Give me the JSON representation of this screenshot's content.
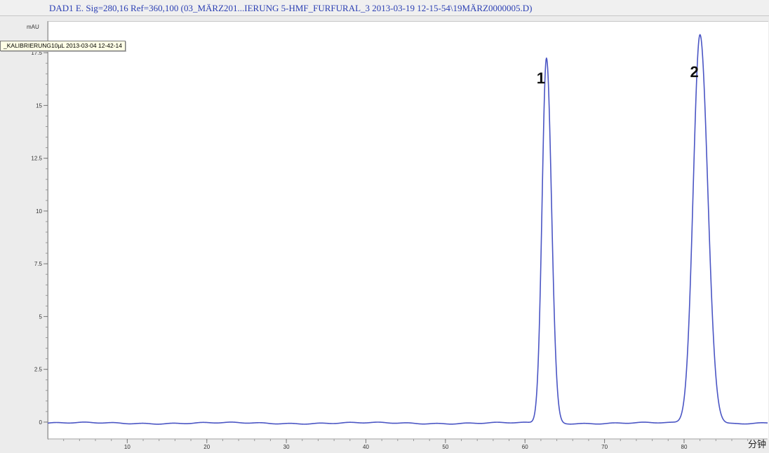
{
  "chart_data": {
    "type": "line",
    "title": "DAD1 E. Sig=280,16 Ref=360,100 (03_MÄRZ201...IERUNG 5-HMF_FURFURAL_3 2013-03-19 12-15-54\\19MÄRZ0000005.D)",
    "ylabel": "mAU",
    "xlabel": "分钟",
    "legend": "_KALIBRIERUNG10µL 2013-03-04 12-42-14",
    "legend_position": "top-left",
    "xlim": [
      0,
      90.5
    ],
    "ylim": [
      -0.8,
      19.0
    ],
    "x_ticks": [
      10,
      20,
      30,
      40,
      50,
      60,
      70,
      80
    ],
    "x_tick_labels": [
      "10",
      "20",
      "30",
      "40",
      "50",
      "60",
      "70",
      "80"
    ],
    "y_ticks": [
      0,
      2.5,
      5,
      7.5,
      10,
      12.5,
      15,
      17.5
    ],
    "y_tick_labels": [
      "0",
      "2.5",
      "5",
      "7.5",
      "10",
      "12.5",
      "15",
      "17.5"
    ],
    "grid": false,
    "series": [
      {
        "color": "#4a55c4",
        "baseline": -0.05,
        "peaks": [
          {
            "label": "1",
            "x": 62.7,
            "height": 17.3,
            "width": 0.55
          },
          {
            "label": "2",
            "x": 82.0,
            "height": 18.4,
            "width": 0.85
          }
        ]
      }
    ]
  }
}
